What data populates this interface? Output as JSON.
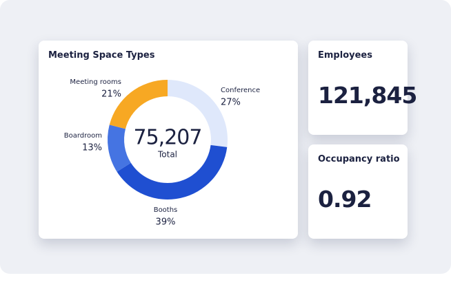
{
  "chart_data": {
    "type": "donut",
    "title": "Meeting Space Types",
    "categories": [
      "Conference",
      "Booths",
      "Boardroom",
      "Meeting rooms"
    ],
    "values": [
      27,
      39,
      13,
      21
    ],
    "value_labels": [
      "27%",
      "39%",
      "13%",
      "21%"
    ],
    "colors": [
      "#dfe8fb",
      "#1f4fd1",
      "#4574e2",
      "#f7a823"
    ],
    "center_value": "75,207",
    "center_label": "Total"
  },
  "cards": [
    {
      "title": "Employees",
      "value": "121,845"
    },
    {
      "title": "Occupancy ratio",
      "value": "0.92"
    }
  ]
}
